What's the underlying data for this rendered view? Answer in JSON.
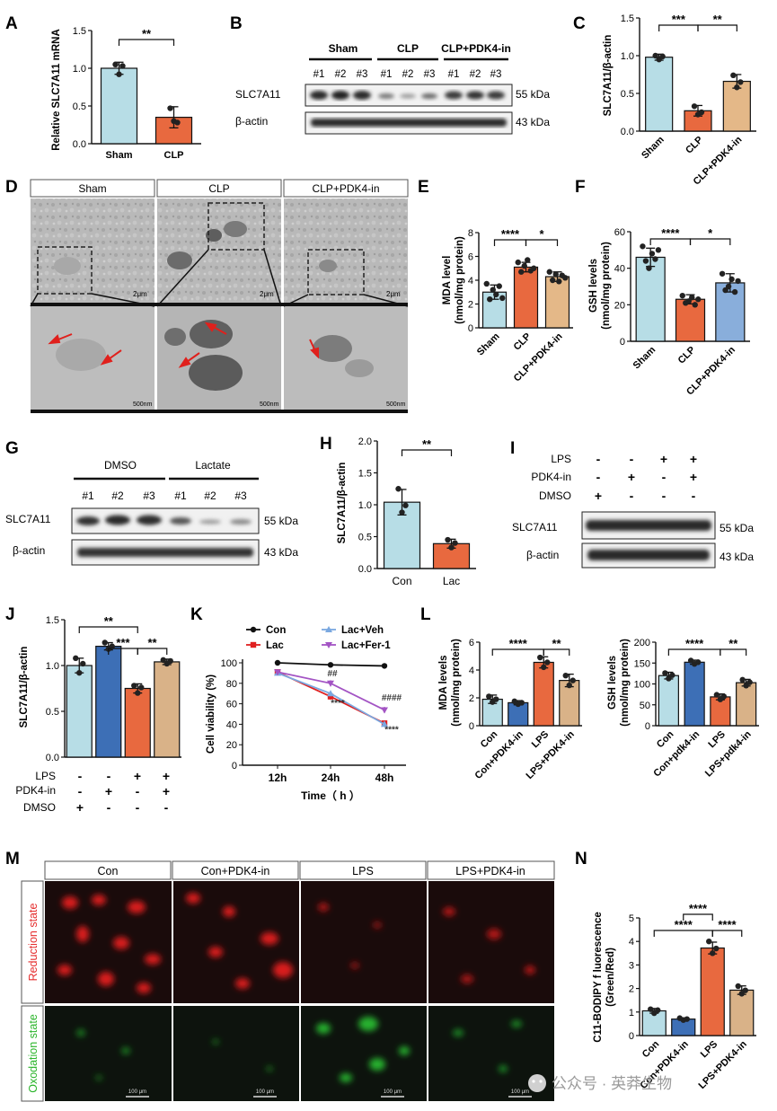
{
  "panels": {
    "A": "A",
    "B": "B",
    "C": "C",
    "D": "D",
    "E": "E",
    "F": "F",
    "G": "G",
    "H": "H",
    "I": "I",
    "J": "J",
    "K": "K",
    "L": "L",
    "M": "M",
    "N": "N"
  },
  "panel_b": {
    "groups": [
      "Sham",
      "CLP",
      "CLP+PDK4-in"
    ],
    "lanes": [
      "#1",
      "#2",
      "#3",
      "#1",
      "#2",
      "#3",
      "#1",
      "#2",
      "#3"
    ],
    "rows": [
      "SLC7A11",
      "β-actin"
    ],
    "sizes": [
      "55 kDa",
      "43 kDa"
    ]
  },
  "panel_d": {
    "columns": [
      "Sham",
      "CLP",
      "CLP+PDK4-in"
    ],
    "scale_top": "2μm",
    "scale_bottom": "500nm"
  },
  "panel_g": {
    "groups": [
      "DMSO",
      "Lactate"
    ],
    "lanes": [
      "#1",
      "#2",
      "#3",
      "#1",
      "#2",
      "#3"
    ],
    "rows": [
      "SLC7A11",
      "β-actin"
    ],
    "sizes": [
      "55 kDa",
      "43 kDa"
    ]
  },
  "panel_i": {
    "treatments": [
      "LPS",
      "PDK4-in",
      "DMSO"
    ],
    "signs": [
      [
        "-",
        "-",
        "+",
        "+"
      ],
      [
        "-",
        "+",
        "-",
        "+"
      ],
      [
        "+",
        "-",
        "-",
        "-"
      ]
    ],
    "rows": [
      "SLC7A11",
      "β-actin"
    ],
    "sizes": [
      "55 kDa",
      "43 kDa"
    ]
  },
  "panel_j_table": {
    "treatments": [
      "LPS",
      "PDK4-in",
      "DMSO"
    ],
    "signs": [
      [
        "-",
        "-",
        "+",
        "+"
      ],
      [
        "-",
        "+",
        "-",
        "+"
      ],
      [
        "+",
        "-",
        "-",
        "-"
      ]
    ]
  },
  "panel_m": {
    "columns": [
      "Con",
      "Con+PDK4-in",
      "LPS",
      "LPS+PDK4-in"
    ],
    "rows": [
      "Reduction state",
      "Oxodation state"
    ],
    "scale": "100 μm"
  },
  "watermark": "公众号 · 英莽生物",
  "chart_data": [
    {
      "id": "A",
      "type": "bar",
      "ylabel": "Relative SLC7A11 mRNA",
      "categories": [
        "Sham",
        "CLP"
      ],
      "values": [
        1.0,
        0.35
      ],
      "errors": [
        0.08,
        0.14
      ],
      "points": [
        [
          1.05,
          0.92,
          1.03
        ],
        [
          0.47,
          0.3,
          0.28
        ]
      ],
      "colors": [
        "#b7dde6",
        "#e8693f"
      ],
      "ylim": [
        0,
        1.5
      ],
      "yticks": [
        "0.0",
        "0.5",
        "1.0",
        "1.5"
      ],
      "sig": [
        {
          "a": 0,
          "b": 1,
          "label": "**"
        }
      ]
    },
    {
      "id": "C",
      "type": "bar",
      "ylabel": "SLC7A11/β-actin",
      "categories": [
        "Sham",
        "CLP",
        "CLP+PDK4-in"
      ],
      "values": [
        0.98,
        0.27,
        0.66
      ],
      "errors": [
        0.04,
        0.07,
        0.09
      ],
      "points": [
        [
          1.0,
          0.95,
          0.99
        ],
        [
          0.33,
          0.22,
          0.25
        ],
        [
          0.74,
          0.58,
          0.65
        ]
      ],
      "colors": [
        "#b7dde6",
        "#e8693f",
        "#e4b888"
      ],
      "ylim": [
        0,
        1.5
      ],
      "yticks": [
        "0.0",
        "0.5",
        "1.0",
        "1.5"
      ],
      "sig": [
        {
          "a": 0,
          "b": 1,
          "label": "***"
        },
        {
          "a": 1,
          "b": 2,
          "label": "**"
        }
      ]
    },
    {
      "id": "E",
      "type": "bar",
      "ylabel": "MDA level (nmol/mg protein)",
      "categories": [
        "Sham",
        "CLP",
        "CLP+PDK4-in"
      ],
      "values": [
        3.0,
        5.1,
        4.3
      ],
      "errors": [
        0.6,
        0.4,
        0.4
      ],
      "points": [
        [
          3.7,
          2.4,
          3.2,
          2.8,
          3.5,
          2.5
        ],
        [
          5.5,
          4.7,
          5.2,
          5.7,
          4.8,
          5.0
        ],
        [
          4.7,
          4.0,
          4.5,
          3.9,
          4.4,
          4.2
        ]
      ],
      "colors": [
        "#b7dde6",
        "#e8693f",
        "#e4b888"
      ],
      "ylim": [
        0,
        8
      ],
      "yticks": [
        "0",
        "2",
        "4",
        "6",
        "8"
      ],
      "sig": [
        {
          "a": 0,
          "b": 1,
          "label": "****"
        },
        {
          "a": 1,
          "b": 2,
          "label": "*"
        }
      ]
    },
    {
      "id": "F",
      "type": "bar",
      "ylabel": "GSH levels (nmol/mg protein)",
      "categories": [
        "Sham",
        "CLP",
        "CLP+PDK4-in"
      ],
      "values": [
        46,
        23,
        32
      ],
      "errors": [
        5,
        2.5,
        5
      ],
      "points": [
        [
          52,
          44,
          40,
          48,
          45,
          50
        ],
        [
          25,
          21,
          22,
          24,
          20,
          23
        ],
        [
          37,
          28,
          30,
          34,
          27,
          33
        ]
      ],
      "colors": [
        "#b7dde6",
        "#e8693f",
        "#89aedb"
      ],
      "ylim": [
        0,
        60
      ],
      "yticks": [
        "0",
        "20",
        "40",
        "60"
      ],
      "sig": [
        {
          "a": 0,
          "b": 1,
          "label": "****"
        },
        {
          "a": 1,
          "b": 2,
          "label": "*"
        }
      ]
    },
    {
      "id": "H",
      "type": "bar",
      "ylabel": "SLC7A11/β-actin",
      "categories": [
        "Con",
        "Lac"
      ],
      "values": [
        1.04,
        0.39
      ],
      "errors": [
        0.2,
        0.07
      ],
      "points": [
        [
          1.25,
          0.88,
          0.99
        ],
        [
          0.45,
          0.33,
          0.4
        ]
      ],
      "colors": [
        "#b7dde6",
        "#e8693f"
      ],
      "ylim": [
        0,
        2.0
      ],
      "yticks": [
        "0.0",
        "0.5",
        "1.0",
        "1.5",
        "2.0"
      ],
      "sig": [
        {
          "a": 0,
          "b": 1,
          "label": "**"
        }
      ]
    },
    {
      "id": "J",
      "type": "bar",
      "ylabel": "SLC7A11/β-actin",
      "categories": [
        "1",
        "2",
        "3",
        "4"
      ],
      "values": [
        1.0,
        1.21,
        0.75,
        1.04
      ],
      "errors": [
        0.08,
        0.04,
        0.05,
        0.03
      ],
      "points": [
        [
          1.08,
          0.92,
          1.02
        ],
        [
          1.25,
          1.18,
          1.21
        ],
        [
          0.78,
          0.7,
          0.76
        ],
        [
          1.06,
          1.02,
          1.05
        ]
      ],
      "colors": [
        "#b7dde6",
        "#3d6fb6",
        "#e8693f",
        "#d9b288"
      ],
      "ylim": [
        0,
        1.5
      ],
      "yticks": [
        "0.0",
        "0.5",
        "1.0",
        "1.5"
      ],
      "sig": [
        {
          "a": 0,
          "b": 2,
          "label": "**"
        },
        {
          "a": 1,
          "b": 2,
          "label": "***"
        },
        {
          "a": 2,
          "b": 3,
          "label": "**"
        }
      ]
    },
    {
      "id": "K",
      "type": "line",
      "ylabel": "Cell viability (%)",
      "xlabel": "Time（ h ）",
      "x": [
        "12h",
        "24h",
        "48h"
      ],
      "series": [
        {
          "name": "Con",
          "values": [
            100,
            98,
            97
          ],
          "errors": [
            0.5,
            0.5,
            0.5
          ],
          "color": "#111111",
          "marker": "circle"
        },
        {
          "name": "Lac",
          "values": [
            91,
            67,
            41
          ],
          "errors": [
            1,
            3,
            2
          ],
          "color": "#e02020",
          "marker": "square"
        },
        {
          "name": "Lac+Veh",
          "values": [
            90,
            70,
            40
          ],
          "errors": [
            1,
            2,
            2
          ],
          "color": "#7aa8e0",
          "marker": "triangle"
        },
        {
          "name": "Lac+Fer-1",
          "values": [
            91,
            80,
            54
          ],
          "errors": [
            1,
            3,
            3
          ],
          "color": "#a354c4",
          "marker": "triangle-down"
        }
      ],
      "ylim": [
        0,
        100
      ],
      "yticks": [
        "0",
        "20",
        "40",
        "60",
        "80",
        "100"
      ],
      "annotations": [
        {
          "x": 1,
          "y": 87,
          "label": "##"
        },
        {
          "x": 1,
          "y": 58,
          "label": "****"
        },
        {
          "x": 2,
          "y": 63,
          "label": "####"
        },
        {
          "x": 2,
          "y": 32,
          "label": "****"
        }
      ]
    },
    {
      "id": "L1",
      "type": "bar",
      "ylabel": "MDA levels (nmol/mg protein)",
      "categories": [
        "Con",
        "Con+PDK4-in",
        "LPS",
        "LPS+PDK4-in"
      ],
      "values": [
        1.9,
        1.65,
        4.55,
        3.25
      ],
      "errors": [
        0.3,
        0.15,
        0.4,
        0.45
      ],
      "points": [
        [
          2.1,
          1.7,
          1.9
        ],
        [
          1.75,
          1.55,
          1.65
        ],
        [
          4.9,
          4.2,
          4.55
        ],
        [
          3.6,
          2.9,
          3.25
        ]
      ],
      "colors": [
        "#b7dde6",
        "#3d6fb6",
        "#e8693f",
        "#d9b288"
      ],
      "ylim": [
        0,
        6
      ],
      "yticks": [
        "0",
        "2",
        "4",
        "6"
      ],
      "sig": [
        {
          "a": 0,
          "b": 2,
          "label": "****"
        },
        {
          "a": 2,
          "b": 3,
          "label": "**"
        }
      ]
    },
    {
      "id": "L2",
      "type": "bar",
      "ylabel": "GSH levels (nmol/mg protein)",
      "categories": [
        "Con",
        "Con+pdk4-in",
        "LPS",
        "LPS+pdk4-in"
      ],
      "values": [
        120,
        152,
        69,
        103
      ],
      "errors": [
        8,
        5,
        7,
        8
      ],
      "points": [
        [
          126,
          113,
          121
        ],
        [
          156,
          148,
          152
        ],
        [
          74,
          63,
          70
        ],
        [
          110,
          96,
          104
        ]
      ],
      "colors": [
        "#b7dde6",
        "#3d6fb6",
        "#e8693f",
        "#d9b288"
      ],
      "ylim": [
        0,
        200
      ],
      "yticks": [
        "0",
        "50",
        "100",
        "150",
        "200"
      ],
      "sig": [
        {
          "a": 0,
          "b": 2,
          "label": "****"
        },
        {
          "a": 2,
          "b": 3,
          "label": "**"
        }
      ]
    },
    {
      "id": "N",
      "type": "bar",
      "ylabel": "C11-BODIPY f luorescence (Green/Red)",
      "categories": [
        "Con",
        "Con+PDK4-in",
        "LPS",
        "LPS+PDK4-in"
      ],
      "values": [
        1.05,
        0.7,
        3.72,
        1.93
      ],
      "errors": [
        0.1,
        0.05,
        0.25,
        0.18
      ],
      "points": [
        [
          1.12,
          0.95,
          1.08
        ],
        [
          0.74,
          0.66,
          0.7
        ],
        [
          4.0,
          3.5,
          3.7
        ],
        [
          2.1,
          1.78,
          1.92
        ]
      ],
      "colors": [
        "#b7dde6",
        "#3d6fb6",
        "#e8693f",
        "#d9b288"
      ],
      "ylim": [
        0,
        5
      ],
      "yticks": [
        "0",
        "1",
        "2",
        "3",
        "4",
        "5"
      ],
      "sig": [
        {
          "a": 2,
          "b": 1,
          "label": "****"
        },
        {
          "a": 0,
          "b": 2,
          "label": "****"
        },
        {
          "a": 2,
          "b": 3,
          "label": "****"
        }
      ]
    }
  ]
}
